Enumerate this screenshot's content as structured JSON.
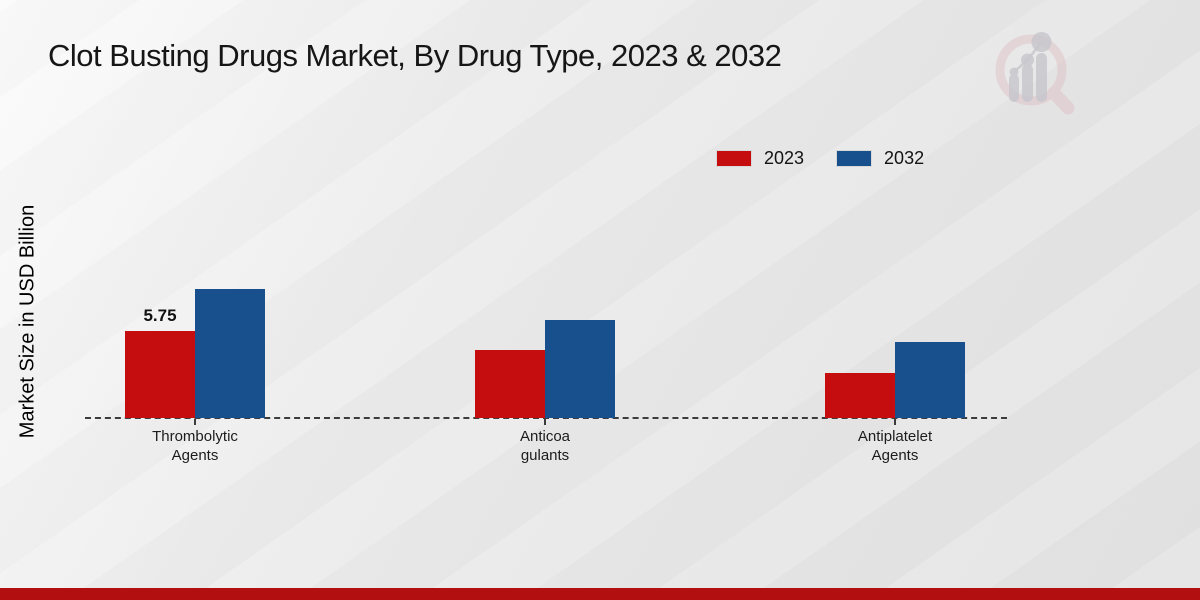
{
  "title": "Clot Busting Drugs Market, By Drug Type, 2023 & 2032",
  "y_axis_label": "Market Size in USD Billion",
  "chart_data": {
    "type": "bar",
    "title": "Clot Busting Drugs Market, By Drug Type, 2023 & 2032",
    "ylabel": "Market Size in USD Billion",
    "xlabel": "",
    "categories": [
      "Thrombolytic Agents",
      "Anticoagulants",
      "Antiplatelet Agents"
    ],
    "category_lines": [
      [
        "Thrombolytic",
        "Agents"
      ],
      [
        "Anticoa",
        "gulants"
      ],
      [
        "Antiplatelet",
        "Agents"
      ]
    ],
    "series": [
      {
        "name": "2023",
        "color": "#c50d10",
        "values": [
          5.75,
          4.5,
          3.0
        ]
      },
      {
        "name": "2032",
        "color": "#17508c",
        "values": [
          8.5,
          6.5,
          5.0
        ]
      }
    ],
    "point_labels": [
      [
        "5.75",
        "",
        ""
      ],
      [
        "",
        "",
        ""
      ]
    ],
    "ylim": [
      0,
      9
    ],
    "grid": false,
    "legend_position": "upper-right",
    "axis_style": "dashed-baseline-only"
  },
  "footer": {
    "accent_color": "#b21010"
  },
  "watermark": {
    "name": "market-research-future-logo"
  }
}
